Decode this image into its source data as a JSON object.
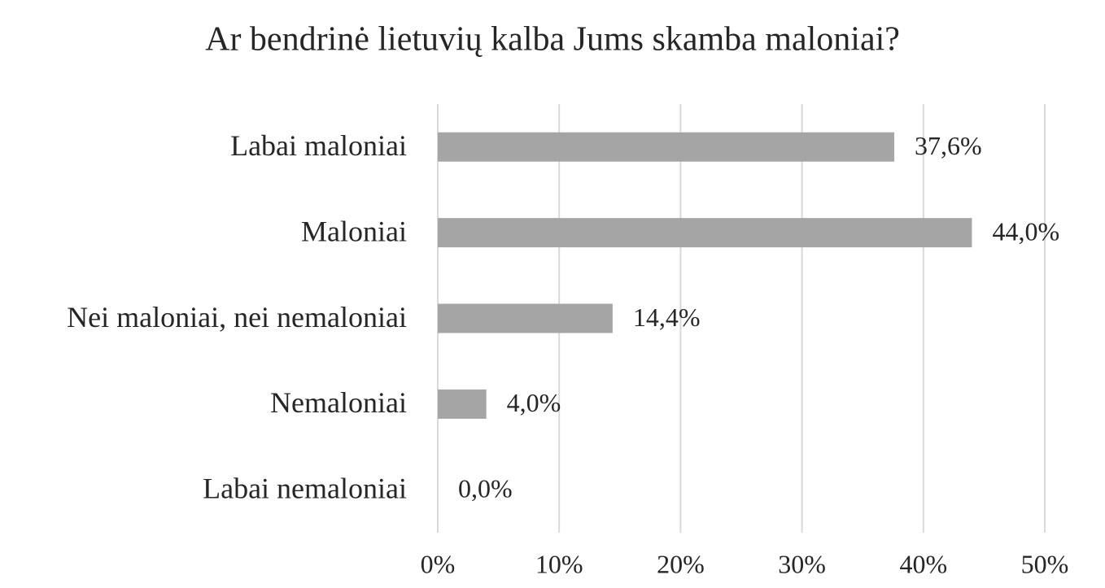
{
  "chart_data": {
    "type": "bar",
    "orientation": "horizontal",
    "title": "Ar bendrinė lietuvių kalba Jums skamba maloniai?",
    "categories": [
      "Labai maloniai",
      "Maloniai",
      "Nei maloniai, nei nemaloniai",
      "Nemaloniai",
      "Labai nemaloniai"
    ],
    "values": [
      37.6,
      44.0,
      14.4,
      4.0,
      0.0
    ],
    "value_labels": [
      "37,6%",
      "44,0%",
      "14,4%",
      "4,0%",
      "0,0%"
    ],
    "color": "#a5a5a5",
    "xlim": [
      0,
      50
    ],
    "xticks": [
      {
        "value": 0,
        "label": "0%"
      },
      {
        "value": 10,
        "label": "10%"
      },
      {
        "value": 20,
        "label": "20%"
      },
      {
        "value": 30,
        "label": "30%"
      },
      {
        "value": 40,
        "label": "40%"
      },
      {
        "value": 50,
        "label": "50%"
      }
    ],
    "grid": true
  }
}
